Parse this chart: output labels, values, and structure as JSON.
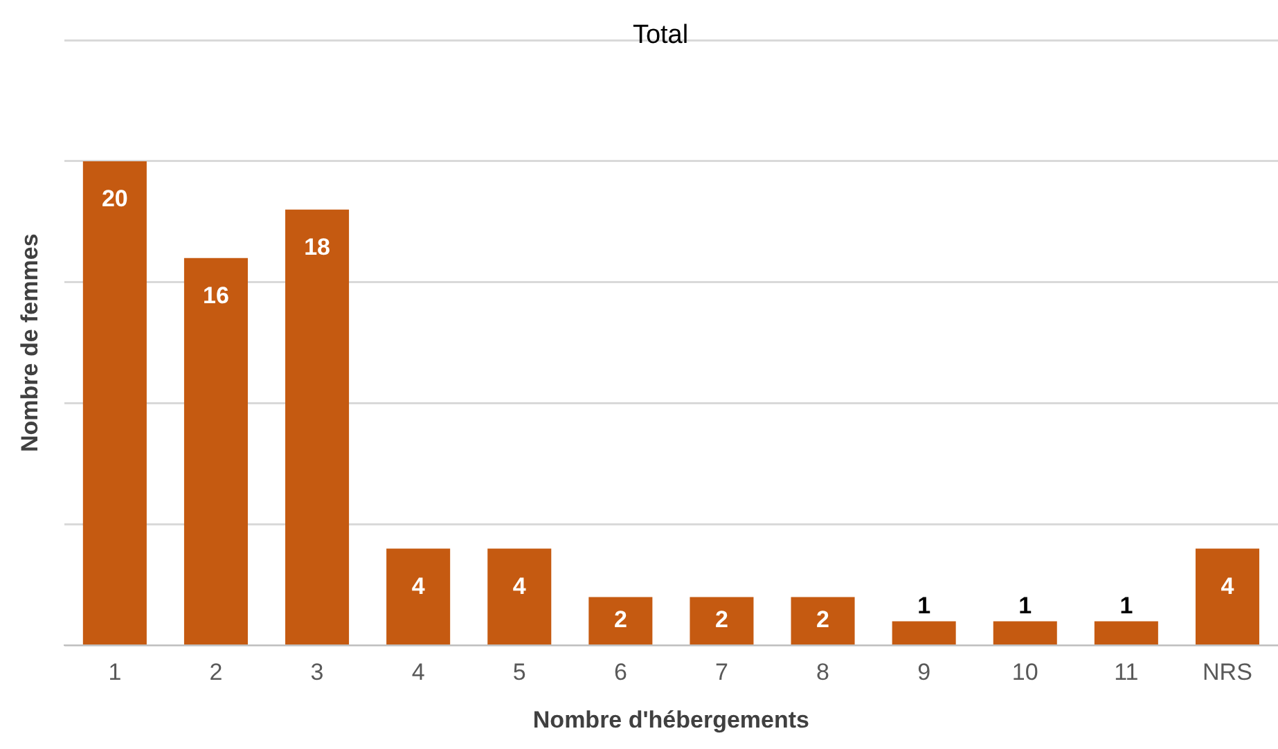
{
  "chart_data": {
    "type": "bar",
    "title": "Total",
    "xlabel": "Nombre d'hébergements",
    "ylabel": "Nombre de femmes",
    "categories": [
      "1",
      "2",
      "3",
      "4",
      "5",
      "6",
      "7",
      "8",
      "9",
      "10",
      "11",
      "NRS"
    ],
    "values": [
      20,
      16,
      18,
      4,
      4,
      2,
      2,
      2,
      1,
      1,
      1,
      4
    ],
    "color": "#c55a11",
    "ylim": [
      0,
      25
    ],
    "yticks": [
      {
        "value": 0,
        "label": null
      },
      {
        "value": 5,
        "label": null
      },
      {
        "value": 10,
        "label": null
      },
      {
        "value": 15,
        "label": null
      },
      {
        "value": 20,
        "label": null
      },
      {
        "value": 25,
        "label": null
      }
    ],
    "grid": "y",
    "tick_labels": "x",
    "data_labels": true,
    "legend": false
  }
}
